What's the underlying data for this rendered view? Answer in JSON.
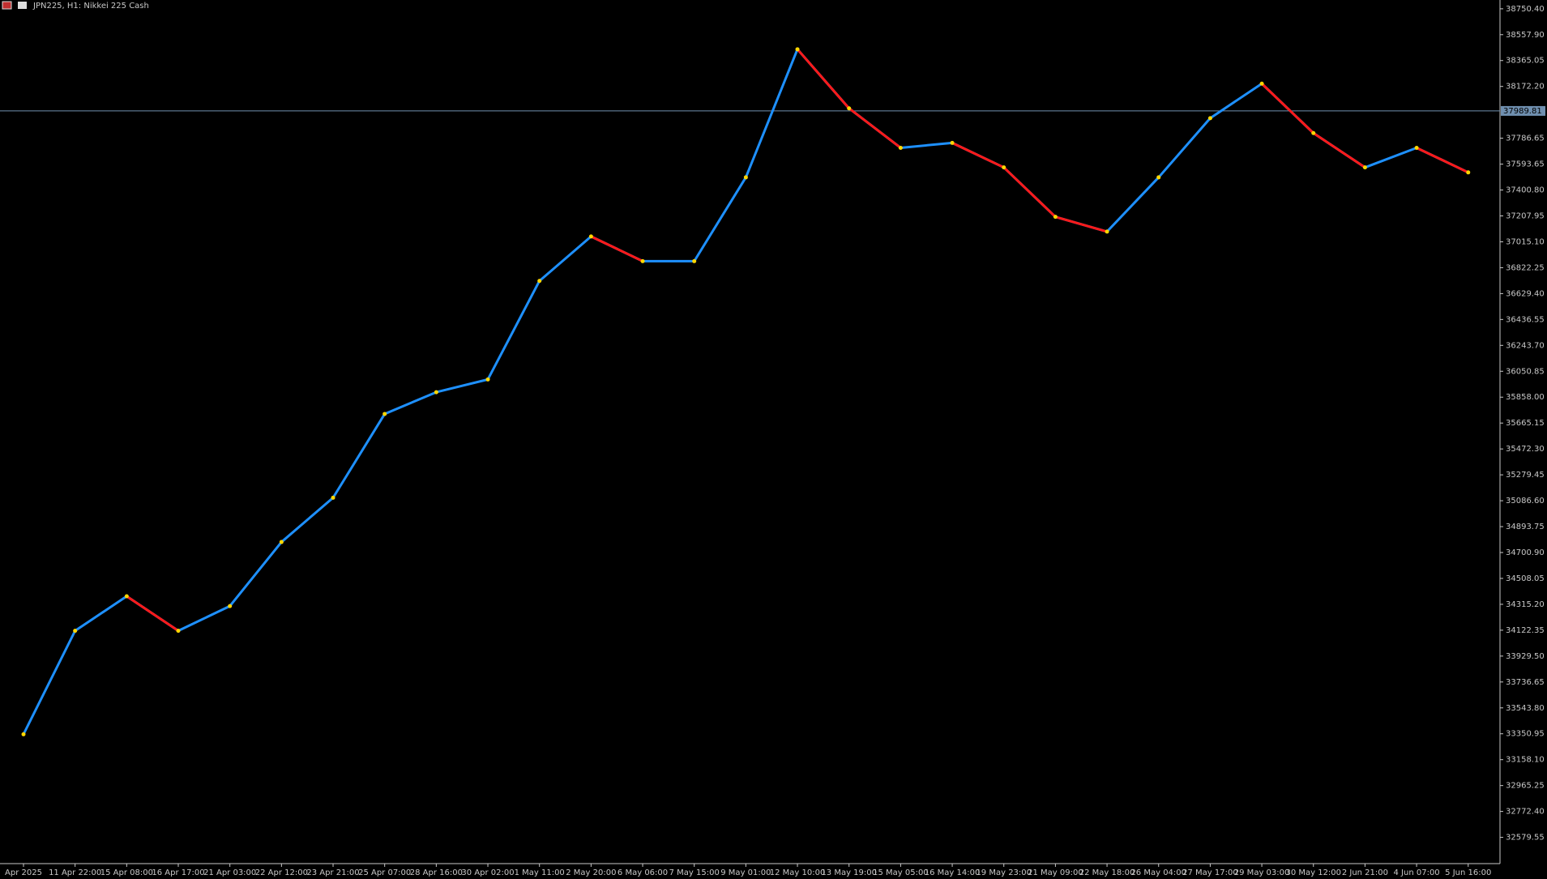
{
  "chart_data": {
    "type": "line",
    "title": "JPN225, H1:  Nikkei 225 Cash",
    "categories": [
      "Apr 2025",
      "11 Apr 22:00",
      "15 Apr 08:00",
      "16 Apr 17:00",
      "21 Apr 03:00",
      "22 Apr 12:00",
      "23 Apr 21:00",
      "25 Apr 07:00",
      "28 Apr 16:00",
      "30 Apr 02:00",
      "1 May 11:00",
      "2 May 20:00",
      "6 May 06:00",
      "7 May 15:00",
      "9 May 01:00",
      "12 May 10:00",
      "13 May 19:00",
      "15 May 05:00",
      "16 May 14:00",
      "19 May 23:00",
      "21 May 09:00",
      "22 May 18:00",
      "26 May 04:00",
      "27 May 17:00",
      "29 May 03:00",
      "30 May 12:00",
      "2 Jun 21:00",
      "4 Jun 07:00",
      "5 Jun 16:00"
    ],
    "values": [
      33347,
      34118,
      34375,
      34118,
      34302,
      34779,
      35109,
      35733,
      35895,
      35990,
      36724,
      37055,
      36871,
      36871,
      37495,
      38449,
      38009,
      37715,
      37752,
      37569,
      37201,
      37091,
      37495,
      37936,
      38193,
      37825,
      37569,
      37715,
      37532
    ],
    "up_color": "#1e90ff",
    "down_color": "#ff1a1a",
    "ylim": [
      32396,
      38816
    ],
    "yticks": [
      {
        "value": 38750.4,
        "label": "38750.40"
      },
      {
        "value": 38557.9,
        "label": "38557.90"
      },
      {
        "value": 38365.05,
        "label": "38365.05"
      },
      {
        "value": 38172.2,
        "label": "38172.20"
      },
      {
        "value": 37786.65,
        "label": "37786.65"
      },
      {
        "value": 37593.65,
        "label": "37593.65"
      },
      {
        "value": 37400.8,
        "label": "37400.80"
      },
      {
        "value": 37207.95,
        "label": "37207.95"
      },
      {
        "value": 37015.1,
        "label": "37015.10"
      },
      {
        "value": 36822.25,
        "label": "36822.25"
      },
      {
        "value": 36629.4,
        "label": "36629.40"
      },
      {
        "value": 36436.55,
        "label": "36436.55"
      },
      {
        "value": 36243.7,
        "label": "36243.70"
      },
      {
        "value": 36050.85,
        "label": "36050.85"
      },
      {
        "value": 35858,
        "label": "35858.00"
      },
      {
        "value": 35665.15,
        "label": "35665.15"
      },
      {
        "value": 35472.3,
        "label": "35472.30"
      },
      {
        "value": 35279.45,
        "label": "35279.45"
      },
      {
        "value": 35086.6,
        "label": "35086.60"
      },
      {
        "value": 34893.75,
        "label": "34893.75"
      },
      {
        "value": 34700.9,
        "label": "34700.90"
      },
      {
        "value": 34508.05,
        "label": "34508.05"
      },
      {
        "value": 34315.2,
        "label": "34315.20"
      },
      {
        "value": 34122.35,
        "label": "34122.35"
      },
      {
        "value": 33929.5,
        "label": "33929.50"
      },
      {
        "value": 33736.65,
        "label": "33736.65"
      },
      {
        "value": 33543.8,
        "label": "33543.80"
      },
      {
        "value": 33350.95,
        "label": "33350.95"
      },
      {
        "value": 33158.1,
        "label": "33158.10"
      },
      {
        "value": 32965.25,
        "label": "32965.25"
      },
      {
        "value": 32772.4,
        "label": "32772.40"
      },
      {
        "value": 32579.55,
        "label": "32579.55"
      }
    ],
    "current_price": {
      "value": 37989.81,
      "label": "37989.81"
    },
    "grid": false
  }
}
